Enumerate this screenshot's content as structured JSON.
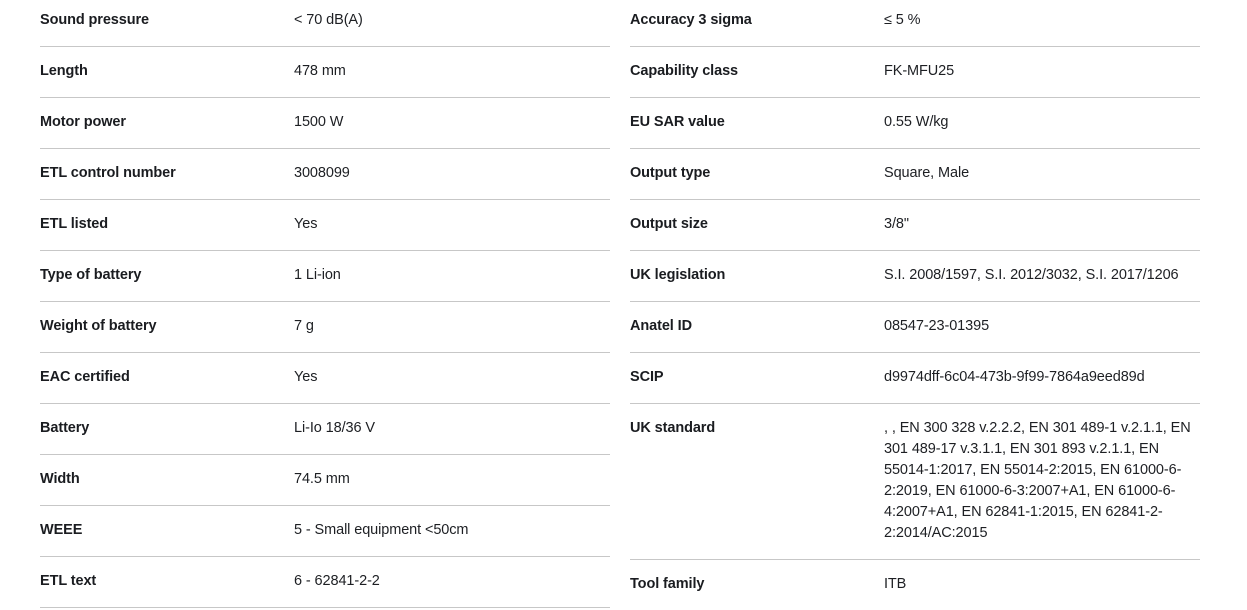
{
  "page": {
    "background": "#ffffff",
    "divider_color": "#c7c7c7",
    "text_color": "#1a1c20"
  },
  "left_table": {
    "rows": [
      {
        "label": "Sound pressure",
        "value": "< 70 dB(A)"
      },
      {
        "label": "Length",
        "value": "478 mm"
      },
      {
        "label": "Motor power",
        "value": "1500 W"
      },
      {
        "label": "ETL control number",
        "value": "3008099"
      },
      {
        "label": "ETL listed",
        "value": "Yes"
      },
      {
        "label": "Type of battery",
        "value": "1 Li-ion"
      },
      {
        "label": "Weight of battery",
        "value": "7 g"
      },
      {
        "label": "EAC certified",
        "value": "Yes"
      },
      {
        "label": "Battery",
        "value": "Li-Io 18/36 V"
      },
      {
        "label": "Width",
        "value": "74.5 mm"
      },
      {
        "label": "WEEE",
        "value": "5 - Small equipment <50cm"
      },
      {
        "label": "ETL text",
        "value": "6 - 62841-2-2"
      }
    ]
  },
  "right_table": {
    "rows": [
      {
        "label": "Accuracy 3 sigma",
        "value": "≤ 5 %"
      },
      {
        "label": "Capability class",
        "value": "FK-MFU25"
      },
      {
        "label": "EU SAR value",
        "value": "0.55 W/kg"
      },
      {
        "label": "Output type",
        "value": "Square, Male"
      },
      {
        "label": "Output size",
        "value": "3/8\""
      },
      {
        "label": "UK legislation",
        "value": "S.I. 2008/1597, S.I. 2012/3032, S.I. 2017/1206"
      },
      {
        "label": "Anatel ID",
        "value": "08547-23-01395"
      },
      {
        "label": "SCIP",
        "value": "d9974dff-6c04-473b-9f99-7864a9eed89d"
      },
      {
        "label": "UK standard",
        "value": ", , EN 300 328 v.2.2.2, EN 301 489-1 v.2.1.1, EN 301 489-17 v.3.1.1, EN 301 893 v.2.1.1, EN 55014-1:2017, EN 55014-2:2015, EN 61000-6-2:2019, EN 61000-6-3:2007+A1, EN 61000-6-4:2007+A1, EN 62841-1:2015, EN 62841-2-2:2014/AC:2015"
      },
      {
        "label": "Tool family",
        "value": "ITB"
      }
    ]
  }
}
